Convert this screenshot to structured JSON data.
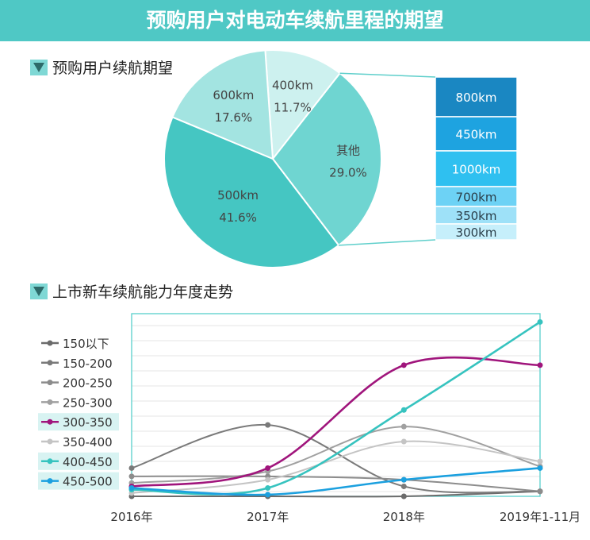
{
  "header": {
    "title": "预购用户对电动车续航里程的期望"
  },
  "sections": {
    "pie_title": "预购用户续航期望",
    "line_title": "上市新车续航能力年度走势"
  },
  "chart_data": [
    {
      "type": "pie",
      "title": "预购用户续航期望",
      "slices": [
        {
          "label": "500km",
          "value_label": "41.6%",
          "value": 41.6,
          "color": "#45c6c2"
        },
        {
          "label": "600km",
          "value_label": "17.6%",
          "value": 17.6,
          "color": "#a3e4e1"
        },
        {
          "label": "400km",
          "value_label": "11.7%",
          "value": 11.7,
          "color": "#cdf1ef"
        },
        {
          "label": "其他",
          "value_label": "29.0%",
          "value": 29.0,
          "color": "#6fd5d1"
        }
      ],
      "breakdown_of": "其他",
      "breakdown": [
        {
          "label": "800km",
          "color": "#1a87c2"
        },
        {
          "label": "450km",
          "color": "#1ea3e0"
        },
        {
          "label": "1000km",
          "color": "#2fc0f0"
        },
        {
          "label": "700km",
          "color": "#6dd2f5"
        },
        {
          "label": "350km",
          "color": "#9ee1f8"
        },
        {
          "label": "300km",
          "color": "#c6effb"
        }
      ]
    },
    {
      "type": "line",
      "title": "上市新车续航能力年度走势",
      "categories": [
        "2016年",
        "2017年",
        "2018年",
        "2019年1-11月"
      ],
      "grid": true,
      "legend_position": "left",
      "series": [
        {
          "name": "150以下",
          "color": "#6b6b6b",
          "values": [
            0,
            0,
            0,
            3
          ]
        },
        {
          "name": "150-200",
          "color": "#7a7a7a",
          "values": [
            17,
            43,
            6,
            3
          ]
        },
        {
          "name": "200-250",
          "color": "#8c8c8c",
          "values": [
            12,
            12,
            10,
            3
          ]
        },
        {
          "name": "250-300",
          "color": "#a0a0a0",
          "values": [
            8,
            15,
            42,
            18
          ]
        },
        {
          "name": "300-350",
          "color": "#a0157c",
          "values": [
            6,
            17,
            79,
            79
          ]
        },
        {
          "name": "350-400",
          "color": "#c4c4c4",
          "values": [
            2,
            10,
            33,
            21
          ]
        },
        {
          "name": "400-450",
          "color": "#36c3bf",
          "values": [
            4,
            5,
            52,
            105
          ]
        },
        {
          "name": "450-500",
          "color": "#1ba0df",
          "values": [
            5,
            1,
            10,
            17
          ]
        }
      ]
    }
  ]
}
